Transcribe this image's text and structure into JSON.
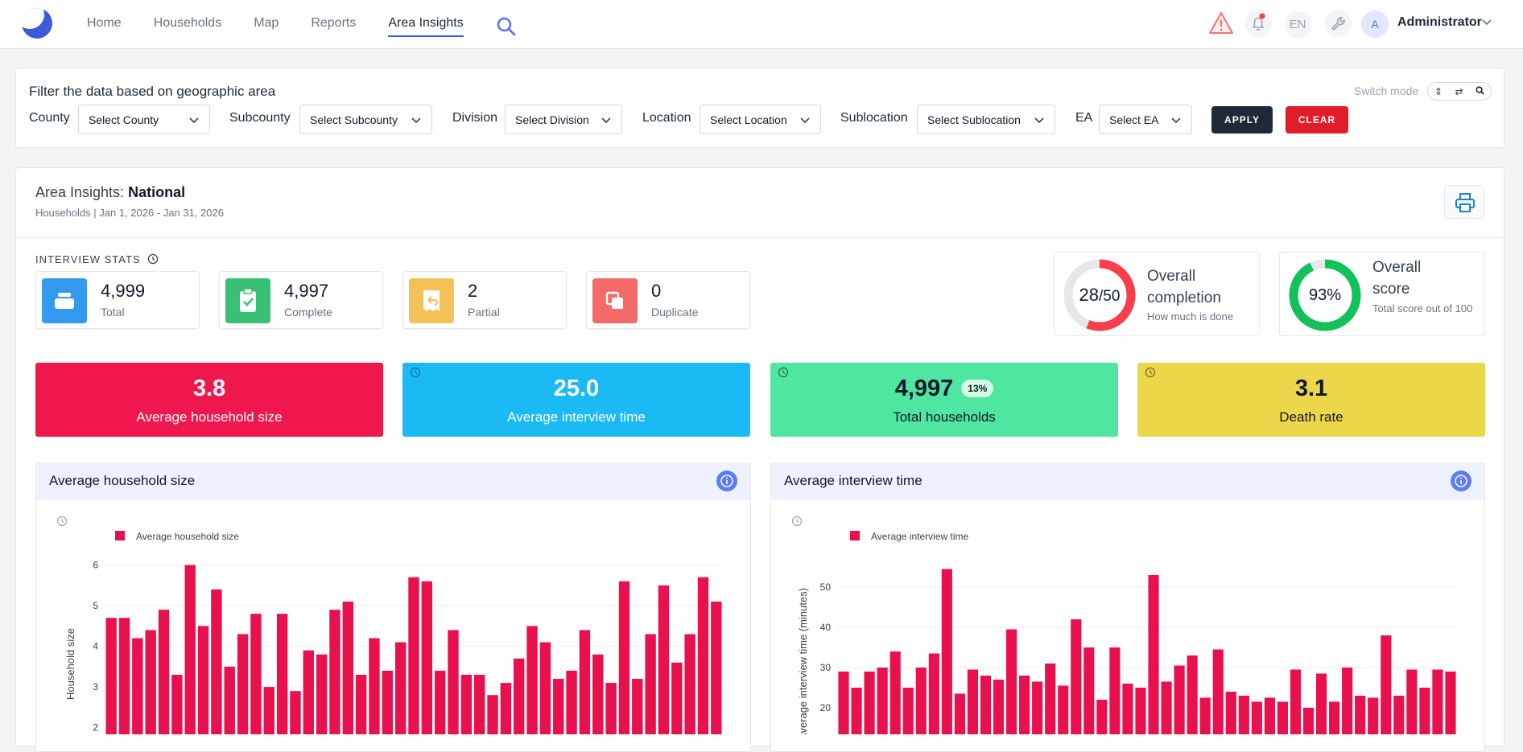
{
  "nav": {
    "items": [
      "Home",
      "Households",
      "Map",
      "Reports",
      "Area Insights"
    ],
    "active": "Area Insights",
    "language": "EN",
    "avatar_letter": "A",
    "user": "Administrator"
  },
  "filter": {
    "title": "Filter the data based on geographic area",
    "switch_label": "Switch mode",
    "fields": [
      {
        "label": "County",
        "placeholder": "Select County"
      },
      {
        "label": "Subcounty",
        "placeholder": "Select Subcounty"
      },
      {
        "label": "Division",
        "placeholder": "Select Division"
      },
      {
        "label": "Location",
        "placeholder": "Select Location"
      },
      {
        "label": "Sublocation",
        "placeholder": "Select Sublocation"
      },
      {
        "label": "EA",
        "placeholder": "Select EA"
      }
    ],
    "apply": "APPLY",
    "clear": "CLEAR"
  },
  "insights": {
    "title_prefix": "Area Insights:",
    "title_area": "National",
    "subtitle": "Households | Jan 1, 2026 - Jan 31, 2026",
    "interview_stats_label": "INTERVIEW STATS",
    "stats": [
      {
        "value": "4,999",
        "label": "Total",
        "color": "#339af0"
      },
      {
        "value": "4,997",
        "label": "Complete",
        "color": "#38c172"
      },
      {
        "value": "2",
        "label": "Partial",
        "color": "#f5c055"
      },
      {
        "value": "0",
        "label": "Duplicate",
        "color": "#f46a6a"
      }
    ],
    "completion": {
      "done": "28",
      "total": "/50",
      "value": 28,
      "max": 50,
      "title": "Overall completion",
      "sub": "How much is done",
      "color": "#fa3e4b"
    },
    "score": {
      "text": "93%",
      "value": 93,
      "title": "Overall score",
      "sub": "Total score out of 100",
      "color": "#12c15a"
    },
    "kpis": [
      {
        "value": "3.8",
        "label": "Average household size",
        "bg": "#f0174f",
        "fg": "#ffffff"
      },
      {
        "value": "25.0",
        "label": "Average interview time",
        "bg": "#1bbaf5",
        "fg": "#ffffff"
      },
      {
        "value": "4,997",
        "badge": "13%",
        "label": "Total households",
        "bg": "#4ee6a0",
        "fg": "#111827"
      },
      {
        "value": "3.1",
        "label": "Death rate",
        "bg": "#ecd64a",
        "fg": "#111827"
      }
    ]
  },
  "chart_data": [
    {
      "type": "bar",
      "title": "Average household size",
      "series_name": "Average household size",
      "ylabel": "Household size",
      "ylim": [
        1.4,
        6.05
      ],
      "yticks": [
        2,
        3,
        4,
        5,
        6
      ],
      "color": "#e8114d",
      "values": [
        4.7,
        4.7,
        4.2,
        4.4,
        4.9,
        3.3,
        6.0,
        4.5,
        5.4,
        3.5,
        4.3,
        4.8,
        3.0,
        4.8,
        2.9,
        3.9,
        3.8,
        4.9,
        5.1,
        3.3,
        4.2,
        3.4,
        4.1,
        5.7,
        5.6,
        3.4,
        4.4,
        3.3,
        3.3,
        2.8,
        3.1,
        3.7,
        4.5,
        4.1,
        3.2,
        3.4,
        4.4,
        3.8,
        3.1,
        5.6,
        3.2,
        4.3,
        5.5,
        3.6,
        4.3,
        5.7,
        5.1
      ]
    },
    {
      "type": "bar",
      "title": "Average interview time",
      "series_name": "Average interview time",
      "ylabel": "Average interview time (minutes)",
      "ylim": [
        9,
        56
      ],
      "yticks": [
        20,
        30,
        40,
        50
      ],
      "color": "#e8114d",
      "values": [
        29,
        25,
        29,
        30,
        34,
        25,
        30,
        33.5,
        54.5,
        23.5,
        29.5,
        28,
        27,
        39.5,
        28,
        26.5,
        31,
        25.5,
        42,
        35,
        22,
        35,
        26,
        25,
        53,
        26.5,
        30.5,
        33,
        22.5,
        34.5,
        24,
        23,
        21.5,
        22.5,
        21.5,
        29.5,
        20,
        28.5,
        21.5,
        30,
        23,
        22.5,
        38,
        23,
        29.5,
        25,
        29.5,
        29
      ]
    }
  ]
}
